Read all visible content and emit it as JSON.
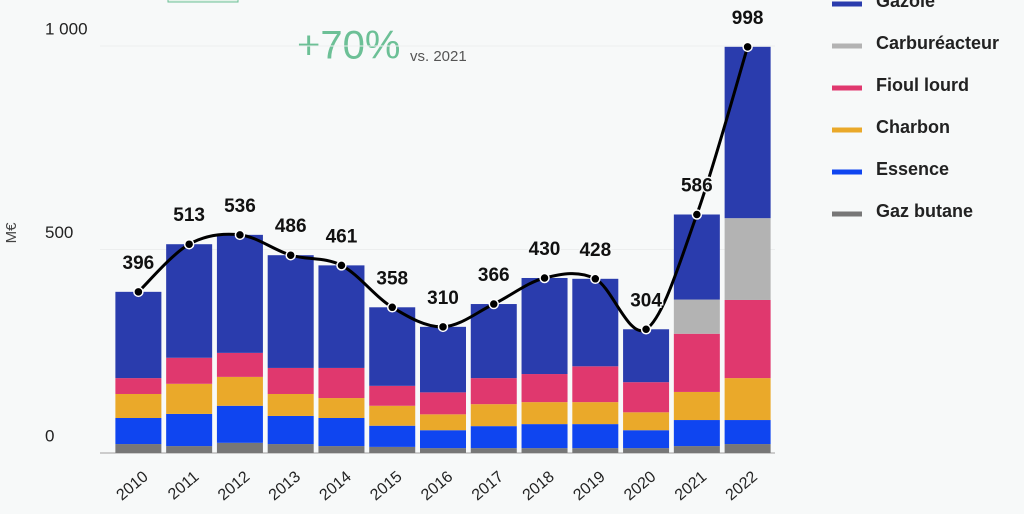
{
  "chart_data": {
    "type": "stacked-bar",
    "annotation": "+70%",
    "annotation_note": "vs. 2021",
    "y_label": "M€",
    "categories": [
      "2010",
      "2011",
      "2012",
      "2013",
      "2014",
      "2015",
      "2016",
      "2017",
      "2018",
      "2019",
      "2020",
      "2021",
      "2022"
    ],
    "series": [
      {
        "name": "Gaz butane",
        "color": "#777777",
        "values": [
          22,
          17,
          25,
          22,
          17,
          15,
          12,
          12,
          12,
          12,
          12,
          17,
          22
        ]
      },
      {
        "name": "Essence",
        "color": "#0f45f0",
        "values": [
          64,
          79,
          91,
          69,
          69,
          52,
          44,
          54,
          59,
          59,
          44,
          64,
          59
        ]
      },
      {
        "name": "Charbon",
        "color": "#eaa92a",
        "values": [
          59,
          74,
          71,
          54,
          49,
          49,
          39,
          54,
          54,
          54,
          44,
          69,
          103
        ]
      },
      {
        "name": "Fioul lourd",
        "color": "#e0386e",
        "values": [
          39,
          64,
          59,
          64,
          74,
          49,
          54,
          64,
          69,
          88,
          74,
          143,
          192
        ]
      },
      {
        "name": "Carburéacteur",
        "color": "#b3b3b3",
        "values": [
          0,
          0,
          0,
          0,
          0,
          0,
          0,
          0,
          0,
          0,
          0,
          84,
          201
        ]
      },
      {
        "name": "Gazole",
        "color": "#2a3cad",
        "values": [
          212,
          279,
          290,
          277,
          252,
          193,
          161,
          182,
          236,
          215,
          130,
          209,
          421
        ]
      }
    ],
    "totals": [
      396,
      513,
      536,
      486,
      461,
      358,
      310,
      366,
      430,
      428,
      304,
      586,
      998
    ],
    "line_color": "#000000",
    "ylim": [
      0,
      1000
    ],
    "yticks": [
      0,
      500,
      {
        "value": 1000,
        "label": "1 000"
      }
    ],
    "grid": true
  }
}
